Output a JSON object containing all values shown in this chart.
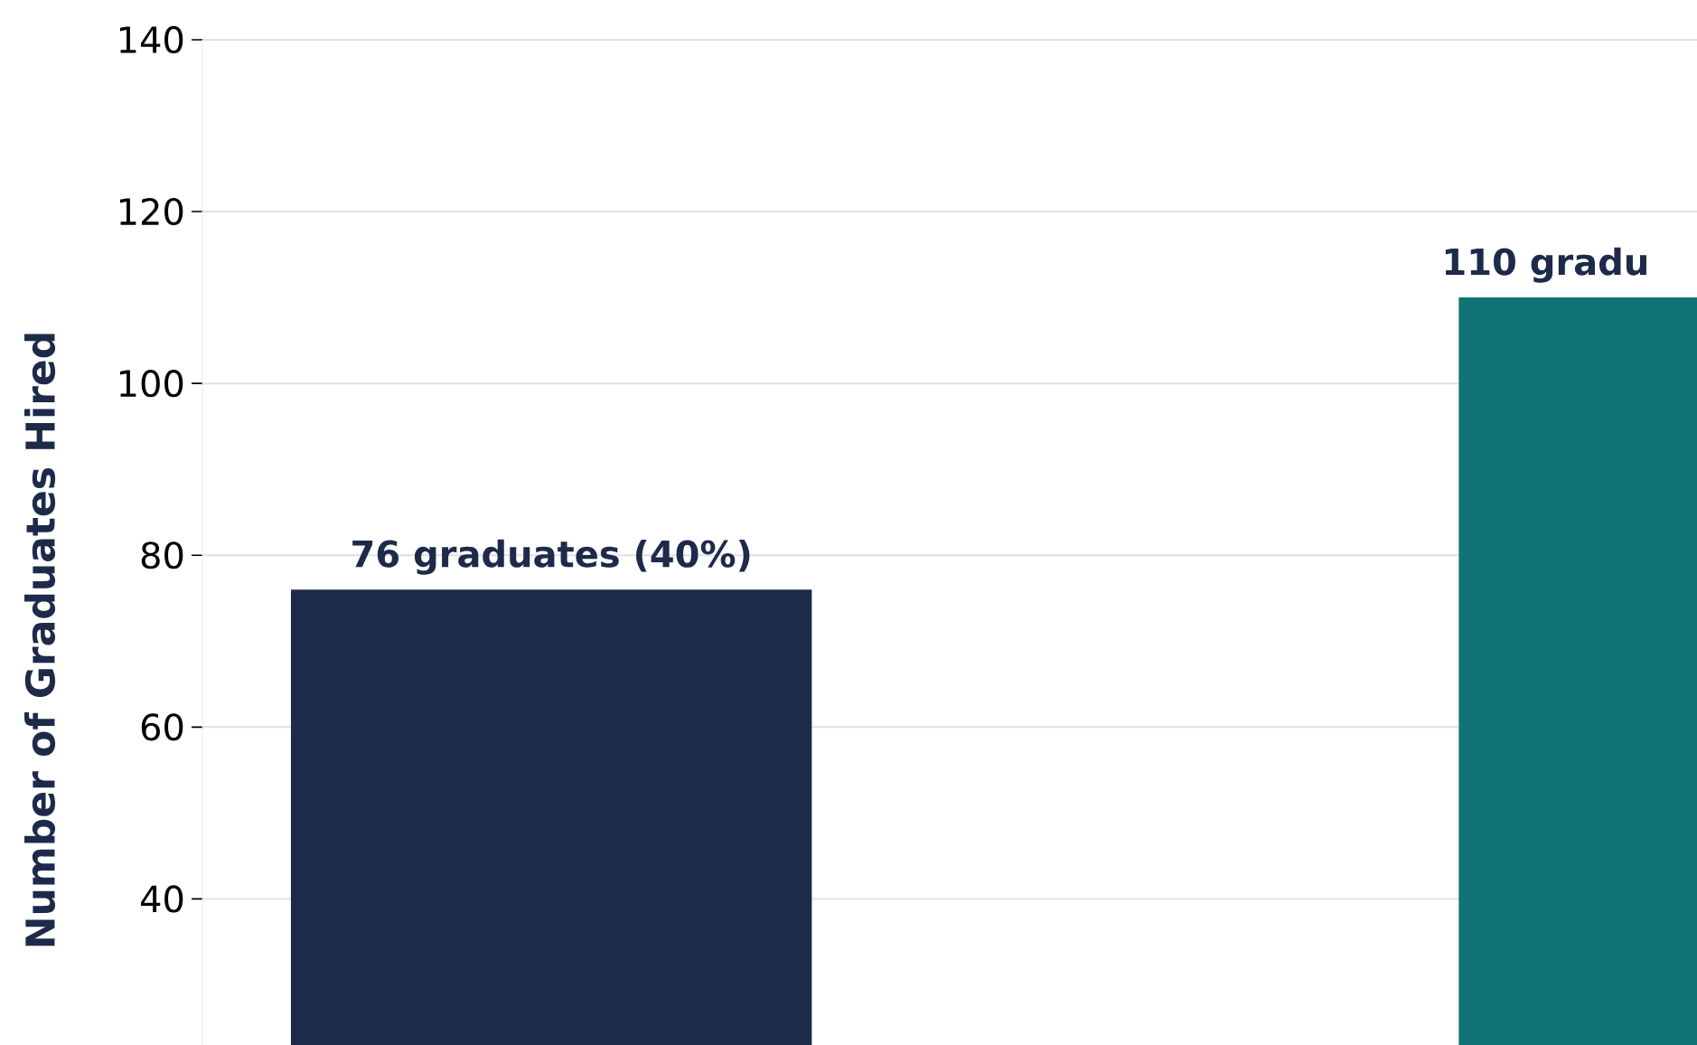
{
  "chart_data": {
    "type": "bar",
    "ylabel": "Number of Graduates Hired",
    "categories": [
      null,
      null
    ],
    "values": [
      76,
      110
    ],
    "colors": [
      "#1e2a4a",
      "#0f7373"
    ],
    "value_labels": [
      "76 graduates (40%)",
      "110 gradu"
    ],
    "ylim": [
      23,
      140
    ],
    "yticks": [
      40,
      60,
      80,
      100,
      120,
      140
    ],
    "grid": "y",
    "tick_labels": "y"
  }
}
